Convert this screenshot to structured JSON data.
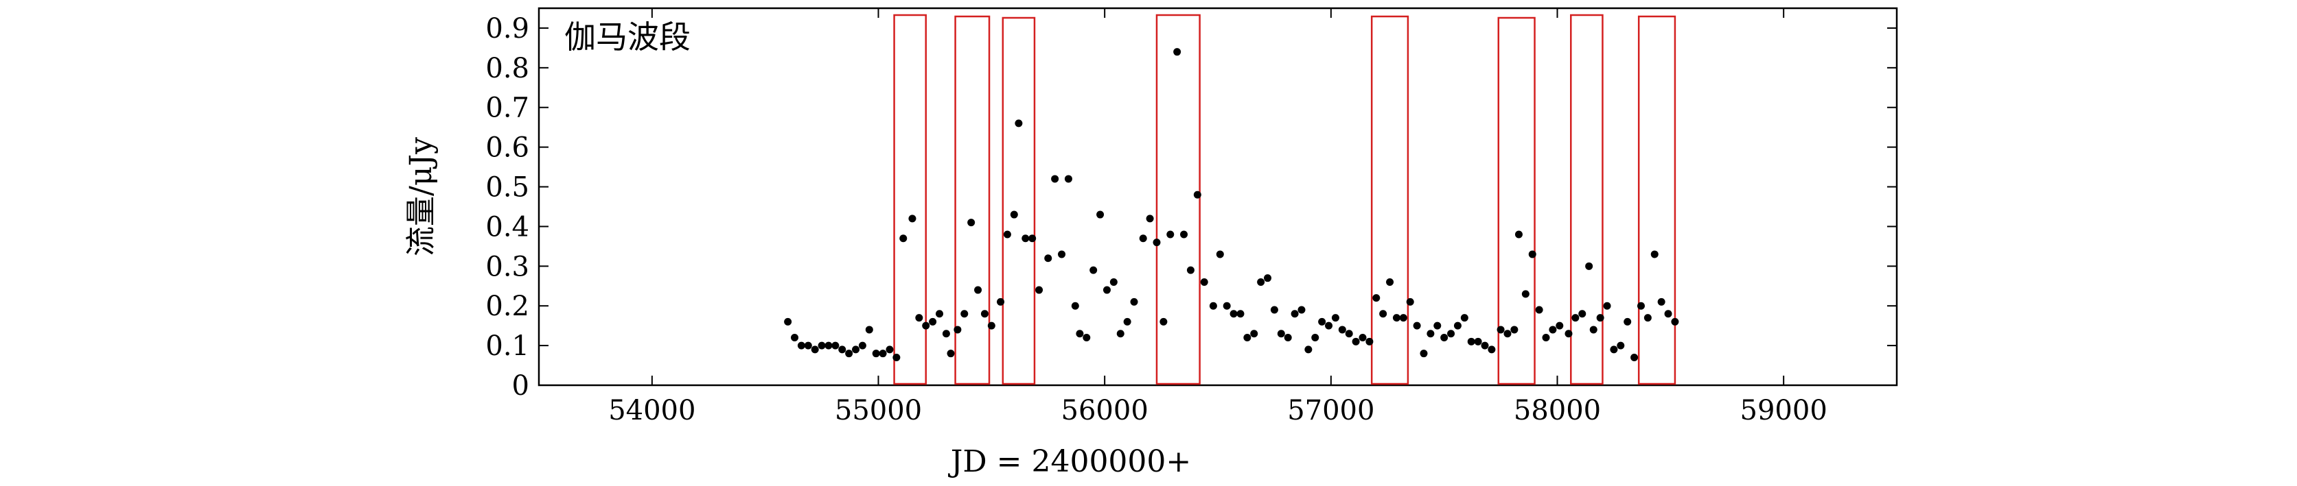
{
  "chart_data": {
    "type": "scatter",
    "annotation": "伽马波段",
    "xlabel": "JD = 2400000+",
    "ylabel": "流量/μJy",
    "xlim": [
      53500,
      59500
    ],
    "ylim": [
      0,
      0.95
    ],
    "xticks": [
      54000,
      55000,
      56000,
      57000,
      58000,
      59000
    ],
    "yticks": [
      0,
      0.1,
      0.2,
      0.3,
      0.4,
      0.5,
      0.6,
      0.7,
      0.8,
      0.9
    ],
    "grid": false,
    "marker_color": "#000000",
    "highlight_color": "#d42020",
    "highlight_ranges": [
      [
        55070,
        55210
      ],
      [
        55340,
        55490
      ],
      [
        55550,
        55690
      ],
      [
        56230,
        56420
      ],
      [
        57180,
        57340
      ],
      [
        57740,
        57900
      ],
      [
        58060,
        58200
      ],
      [
        58360,
        58520
      ]
    ],
    "points": [
      [
        54600,
        0.16
      ],
      [
        54630,
        0.12
      ],
      [
        54660,
        0.1
      ],
      [
        54690,
        0.1
      ],
      [
        54720,
        0.09
      ],
      [
        54750,
        0.1
      ],
      [
        54780,
        0.1
      ],
      [
        54810,
        0.1
      ],
      [
        54840,
        0.09
      ],
      [
        54870,
        0.08
      ],
      [
        54900,
        0.09
      ],
      [
        54930,
        0.1
      ],
      [
        54960,
        0.14
      ],
      [
        54990,
        0.08
      ],
      [
        55020,
        0.08
      ],
      [
        55050,
        0.09
      ],
      [
        55080,
        0.07
      ],
      [
        55110,
        0.37
      ],
      [
        55150,
        0.42
      ],
      [
        55180,
        0.17
      ],
      [
        55210,
        0.15
      ],
      [
        55240,
        0.16
      ],
      [
        55270,
        0.18
      ],
      [
        55300,
        0.13
      ],
      [
        55320,
        0.08
      ],
      [
        55350,
        0.14
      ],
      [
        55380,
        0.18
      ],
      [
        55410,
        0.41
      ],
      [
        55440,
        0.24
      ],
      [
        55470,
        0.18
      ],
      [
        55500,
        0.15
      ],
      [
        55540,
        0.21
      ],
      [
        55570,
        0.38
      ],
      [
        55600,
        0.43
      ],
      [
        55620,
        0.66
      ],
      [
        55650,
        0.37
      ],
      [
        55680,
        0.37
      ],
      [
        55710,
        0.24
      ],
      [
        55750,
        0.32
      ],
      [
        55780,
        0.52
      ],
      [
        55810,
        0.33
      ],
      [
        55840,
        0.52
      ],
      [
        55870,
        0.2
      ],
      [
        55890,
        0.13
      ],
      [
        55920,
        0.12
      ],
      [
        55950,
        0.29
      ],
      [
        55980,
        0.43
      ],
      [
        56010,
        0.24
      ],
      [
        56040,
        0.26
      ],
      [
        56070,
        0.13
      ],
      [
        56100,
        0.16
      ],
      [
        56130,
        0.21
      ],
      [
        56170,
        0.37
      ],
      [
        56200,
        0.42
      ],
      [
        56230,
        0.36
      ],
      [
        56260,
        0.16
      ],
      [
        56290,
        0.38
      ],
      [
        56320,
        0.84
      ],
      [
        56350,
        0.38
      ],
      [
        56380,
        0.29
      ],
      [
        56410,
        0.48
      ],
      [
        56440,
        0.26
      ],
      [
        56480,
        0.2
      ],
      [
        56510,
        0.33
      ],
      [
        56540,
        0.2
      ],
      [
        56570,
        0.18
      ],
      [
        56600,
        0.18
      ],
      [
        56630,
        0.12
      ],
      [
        56660,
        0.13
      ],
      [
        56690,
        0.26
      ],
      [
        56720,
        0.27
      ],
      [
        56750,
        0.19
      ],
      [
        56780,
        0.13
      ],
      [
        56810,
        0.12
      ],
      [
        56840,
        0.18
      ],
      [
        56870,
        0.19
      ],
      [
        56900,
        0.09
      ],
      [
        56930,
        0.12
      ],
      [
        56960,
        0.16
      ],
      [
        56990,
        0.15
      ],
      [
        57020,
        0.17
      ],
      [
        57050,
        0.14
      ],
      [
        57080,
        0.13
      ],
      [
        57110,
        0.11
      ],
      [
        57140,
        0.12
      ],
      [
        57170,
        0.11
      ],
      [
        57200,
        0.22
      ],
      [
        57230,
        0.18
      ],
      [
        57260,
        0.26
      ],
      [
        57290,
        0.17
      ],
      [
        57320,
        0.17
      ],
      [
        57350,
        0.21
      ],
      [
        57380,
        0.15
      ],
      [
        57410,
        0.08
      ],
      [
        57440,
        0.13
      ],
      [
        57470,
        0.15
      ],
      [
        57500,
        0.12
      ],
      [
        57530,
        0.13
      ],
      [
        57560,
        0.15
      ],
      [
        57590,
        0.17
      ],
      [
        57620,
        0.11
      ],
      [
        57650,
        0.11
      ],
      [
        57680,
        0.1
      ],
      [
        57710,
        0.09
      ],
      [
        57750,
        0.14
      ],
      [
        57780,
        0.13
      ],
      [
        57810,
        0.14
      ],
      [
        57830,
        0.38
      ],
      [
        57860,
        0.23
      ],
      [
        57890,
        0.33
      ],
      [
        57920,
        0.19
      ],
      [
        57950,
        0.12
      ],
      [
        57980,
        0.14
      ],
      [
        58010,
        0.15
      ],
      [
        58050,
        0.13
      ],
      [
        58080,
        0.17
      ],
      [
        58110,
        0.18
      ],
      [
        58140,
        0.3
      ],
      [
        58160,
        0.14
      ],
      [
        58190,
        0.17
      ],
      [
        58220,
        0.2
      ],
      [
        58250,
        0.09
      ],
      [
        58280,
        0.1
      ],
      [
        58310,
        0.16
      ],
      [
        58340,
        0.07
      ],
      [
        58370,
        0.2
      ],
      [
        58400,
        0.17
      ],
      [
        58430,
        0.33
      ],
      [
        58460,
        0.21
      ],
      [
        58490,
        0.18
      ],
      [
        58520,
        0.16
      ]
    ]
  }
}
